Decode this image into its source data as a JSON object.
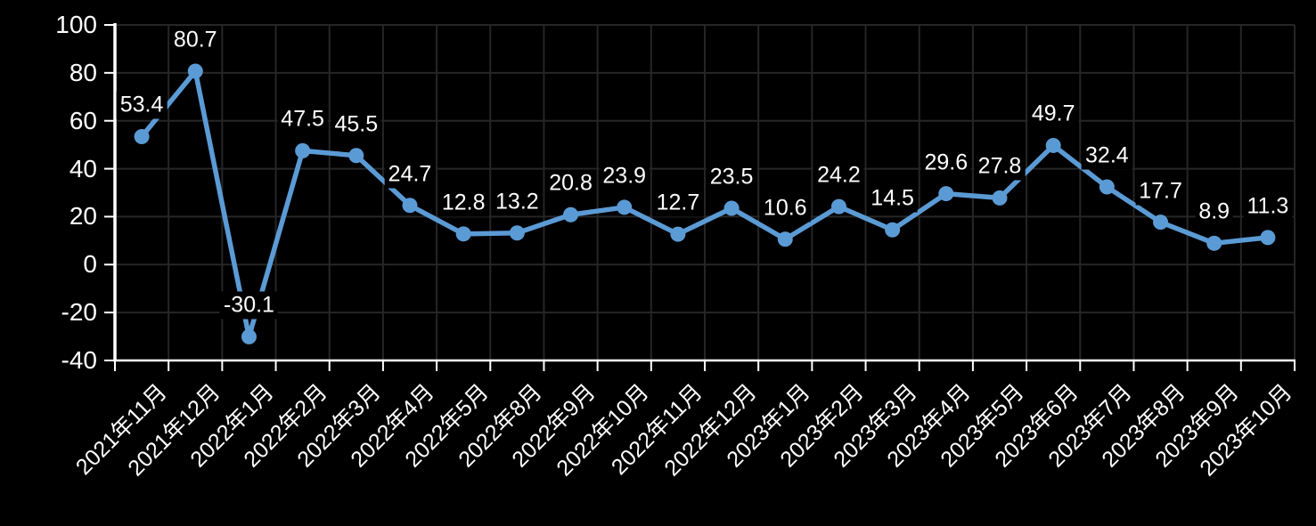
{
  "chart_data": {
    "type": "line",
    "title": "",
    "xlabel": "",
    "ylabel": "",
    "categories": [
      "2021年11月",
      "2021年12月",
      "2022年1月",
      "2022年2月",
      "2022年3月",
      "2022年4月",
      "2022年5月",
      "2022年8月",
      "2022年9月",
      "2022年10月",
      "2022年11月",
      "2022年12月",
      "2023年1月",
      "2023年2月",
      "2023年3月",
      "2023年4月",
      "2023年5月",
      "2023年6月",
      "2023年7月",
      "2023年8月",
      "2023年9月",
      "2023年10月"
    ],
    "values": [
      53.4,
      80.7,
      -30.1,
      47.5,
      45.5,
      24.7,
      12.8,
      13.2,
      20.8,
      23.9,
      12.7,
      23.5,
      10.6,
      24.2,
      14.5,
      29.6,
      27.8,
      49.7,
      32.4,
      17.7,
      8.9,
      11.3
    ],
    "data_labels": [
      "53.4",
      "80.7",
      "-30.1",
      "47.5",
      "45.5",
      "24.7",
      "12.8",
      "13.2",
      "20.8",
      "23.9",
      "12.7",
      "23.5",
      "10.6",
      "24.2",
      "14.5",
      "29.6",
      "27.8",
      "49.7",
      "32.4",
      "17.7",
      "8.9",
      "11.3"
    ],
    "y_tick_labels": [
      "100",
      "80",
      "60",
      "40",
      "20",
      "0",
      "-20",
      "-40"
    ],
    "ylim": [
      -40,
      100
    ],
    "ytick_step": 20,
    "grid": true,
    "legend": false,
    "marker": "circle",
    "colors": {
      "background": "#000000",
      "line": "#5B9BD5",
      "marker": "#5B9BD5",
      "text": "#ffffff",
      "gridline": "#262626",
      "axis": "#ffffff"
    }
  }
}
